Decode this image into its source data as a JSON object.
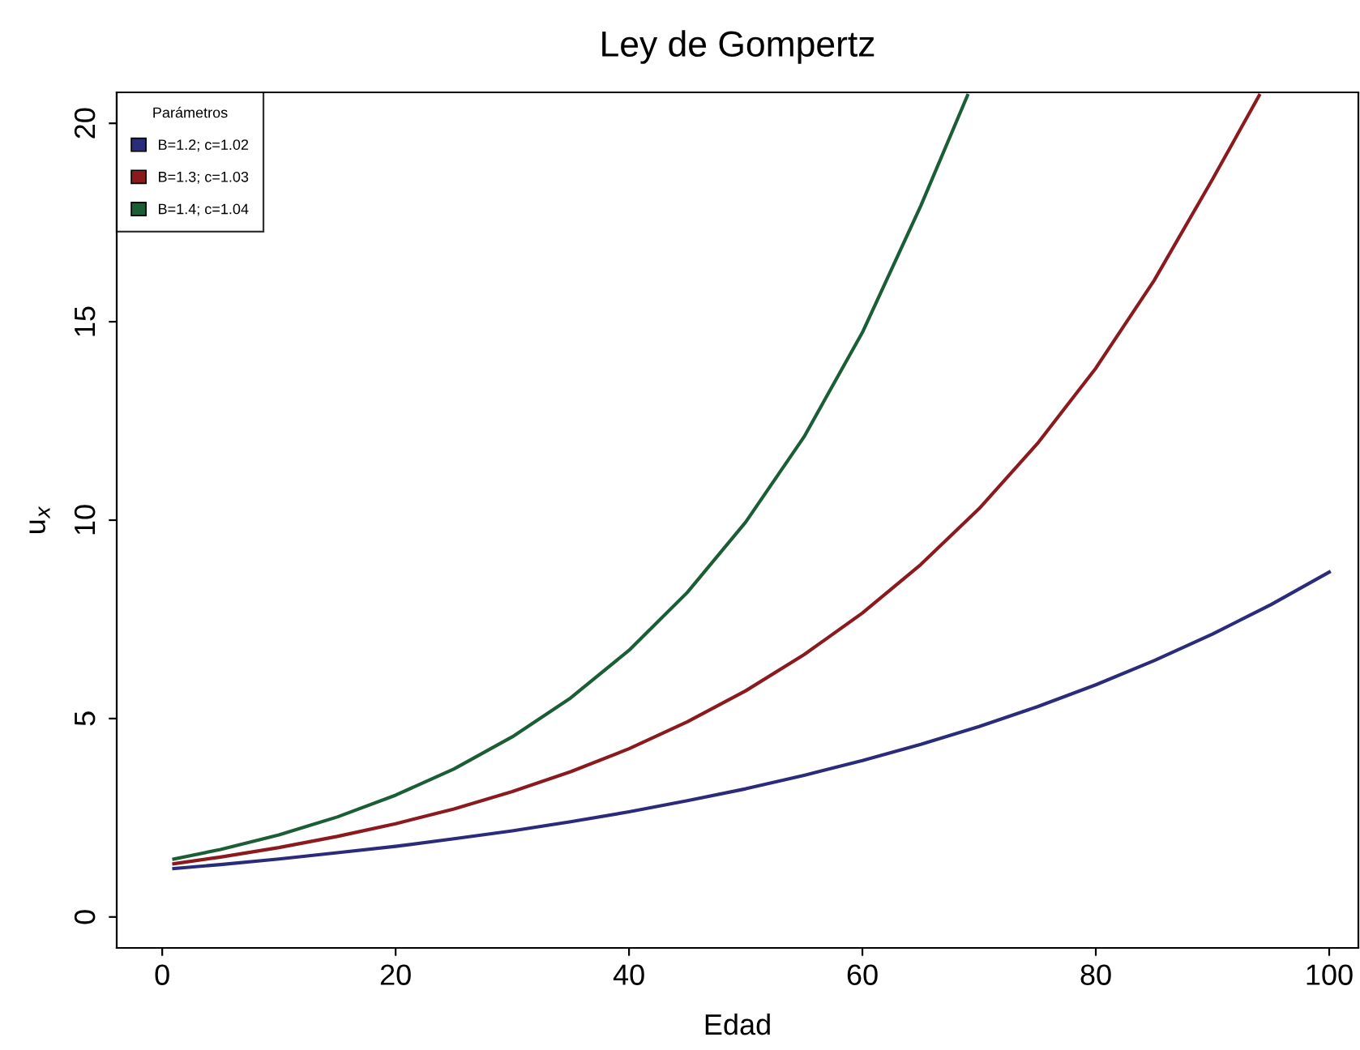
{
  "chart_data": {
    "type": "line",
    "title": "Ley de Gompertz",
    "xlabel": "Edad",
    "ylabel": "u$_{x}$",
    "legend_title": "Parámetros",
    "xlim": [
      -3.9,
      102.5
    ],
    "ylim": [
      -0.78,
      20.78
    ],
    "xticks": [
      0,
      20,
      40,
      60,
      80,
      100
    ],
    "yticks": [
      0,
      5,
      10,
      15,
      20
    ],
    "grid": false,
    "legend": "top left",
    "marker": "none",
    "line_style": "solid",
    "series": [
      {
        "name": "B=1.2; c=1.02",
        "color": "#2b2b7c",
        "x": [
          1,
          5,
          10,
          15,
          20,
          25,
          30,
          35,
          40,
          45,
          50,
          55,
          60,
          65,
          70,
          75,
          80,
          85,
          90,
          95,
          100
        ],
        "values": [
          1.22,
          1.32,
          1.46,
          1.62,
          1.78,
          1.97,
          2.17,
          2.4,
          2.65,
          2.93,
          3.23,
          3.57,
          3.94,
          4.35,
          4.8,
          5.3,
          5.85,
          6.46,
          7.13,
          7.87,
          8.69
        ]
      },
      {
        "name": "B=1.3; c=1.03",
        "color": "#8b1a1e",
        "x": [
          1,
          5,
          10,
          15,
          20,
          25,
          30,
          35,
          40,
          45,
          50,
          55,
          60,
          65,
          70,
          75,
          80,
          85,
          90,
          94
        ],
        "values": [
          1.34,
          1.51,
          1.75,
          2.03,
          2.35,
          2.72,
          3.16,
          3.66,
          4.24,
          4.92,
          5.7,
          6.61,
          7.66,
          8.88,
          10.29,
          11.93,
          13.83,
          16.04,
          18.59,
          20.7
        ]
      },
      {
        "name": "B=1.4; c=1.04",
        "color": "#1b5e36",
        "x": [
          1,
          5,
          10,
          15,
          20,
          25,
          30,
          35,
          40,
          45,
          50,
          55,
          60,
          65,
          69
        ],
        "values": [
          1.46,
          1.7,
          2.07,
          2.52,
          3.07,
          3.73,
          4.54,
          5.52,
          6.72,
          8.18,
          9.95,
          12.1,
          14.73,
          17.92,
          20.7
        ]
      }
    ]
  }
}
